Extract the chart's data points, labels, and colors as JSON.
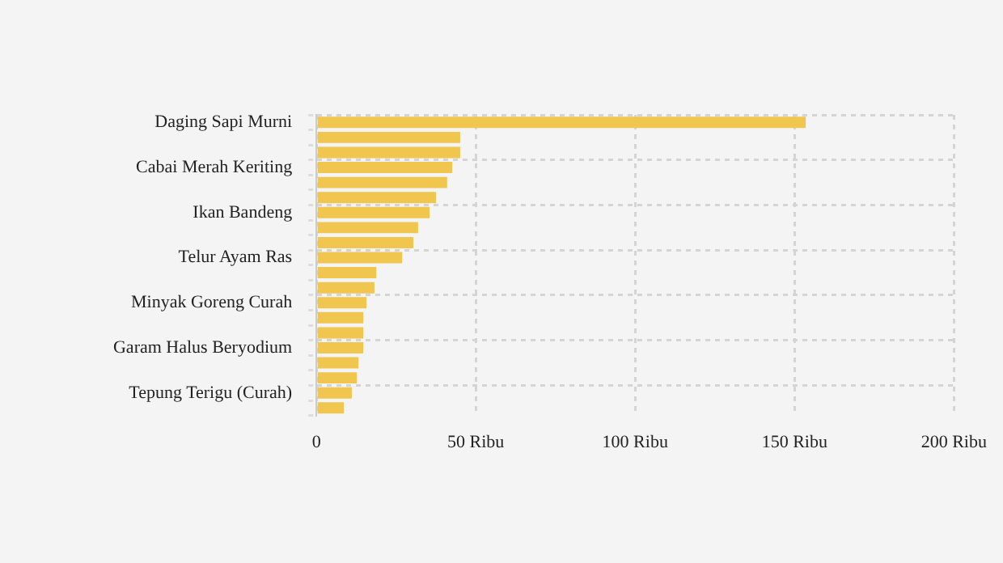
{
  "chart_data": {
    "type": "bar",
    "orientation": "horizontal",
    "categories": [
      "Daging Sapi Murni",
      null,
      null,
      "Cabai Merah Keriting",
      null,
      null,
      "Ikan Bandeng",
      null,
      null,
      "Telur Ayam Ras",
      null,
      null,
      "Minyak Goreng Curah",
      null,
      null,
      "Garam Halus Beryodium",
      null,
      null,
      "Tepung Terigu (Curah)",
      null
    ],
    "values": [
      153.5,
      45.1,
      45.1,
      42.6,
      41,
      37.5,
      35.5,
      31.9,
      30.4,
      26.9,
      18.8,
      18.2,
      15.7,
      14.7,
      14.7,
      14.7,
      13.2,
      12.7,
      11.1,
      8.6
    ],
    "color": "#f0c64f",
    "xlim": [
      0,
      200
    ],
    "xticks": [
      0,
      {
        "value": 50,
        "label": "50 Ribu"
      },
      {
        "value": 100,
        "label": "100 Ribu"
      },
      {
        "value": 150,
        "label": "150 Ribu"
      },
      {
        "value": 200,
        "label": "200 Ribu"
      }
    ],
    "grid": true,
    "legend": false
  }
}
